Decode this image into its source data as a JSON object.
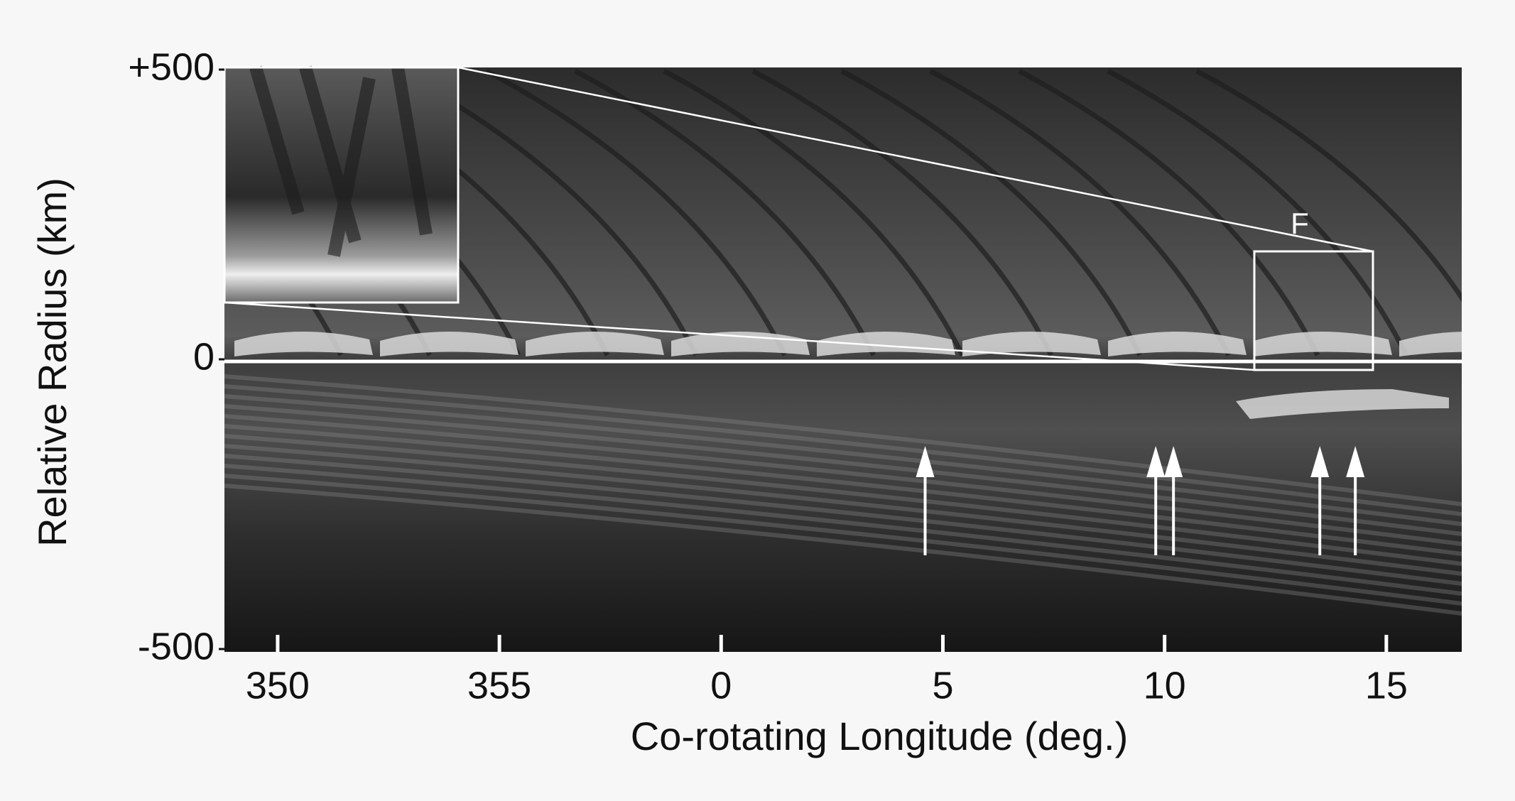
{
  "chart_data": {
    "type": "image",
    "xlabel": "Co-rotating Longitude (deg.)",
    "ylabel": "Relative Radius (km)",
    "xlim": [
      348.8,
      376.7
    ],
    "xticks": [
      {
        "value": 350,
        "label": "350"
      },
      {
        "value": 355,
        "label": "355"
      },
      {
        "value": 360,
        "label": "0"
      },
      {
        "value": 365,
        "label": "5"
      },
      {
        "value": 370,
        "label": "10"
      },
      {
        "value": 375,
        "label": "15"
      }
    ],
    "ylim": [
      -500,
      500
    ],
    "yticks": [
      {
        "value": 500,
        "label": "+500"
      },
      0,
      -500
    ],
    "annotation": "F",
    "arrows": [
      364.6,
      369.8,
      370.2,
      373.5,
      374.3
    ]
  }
}
